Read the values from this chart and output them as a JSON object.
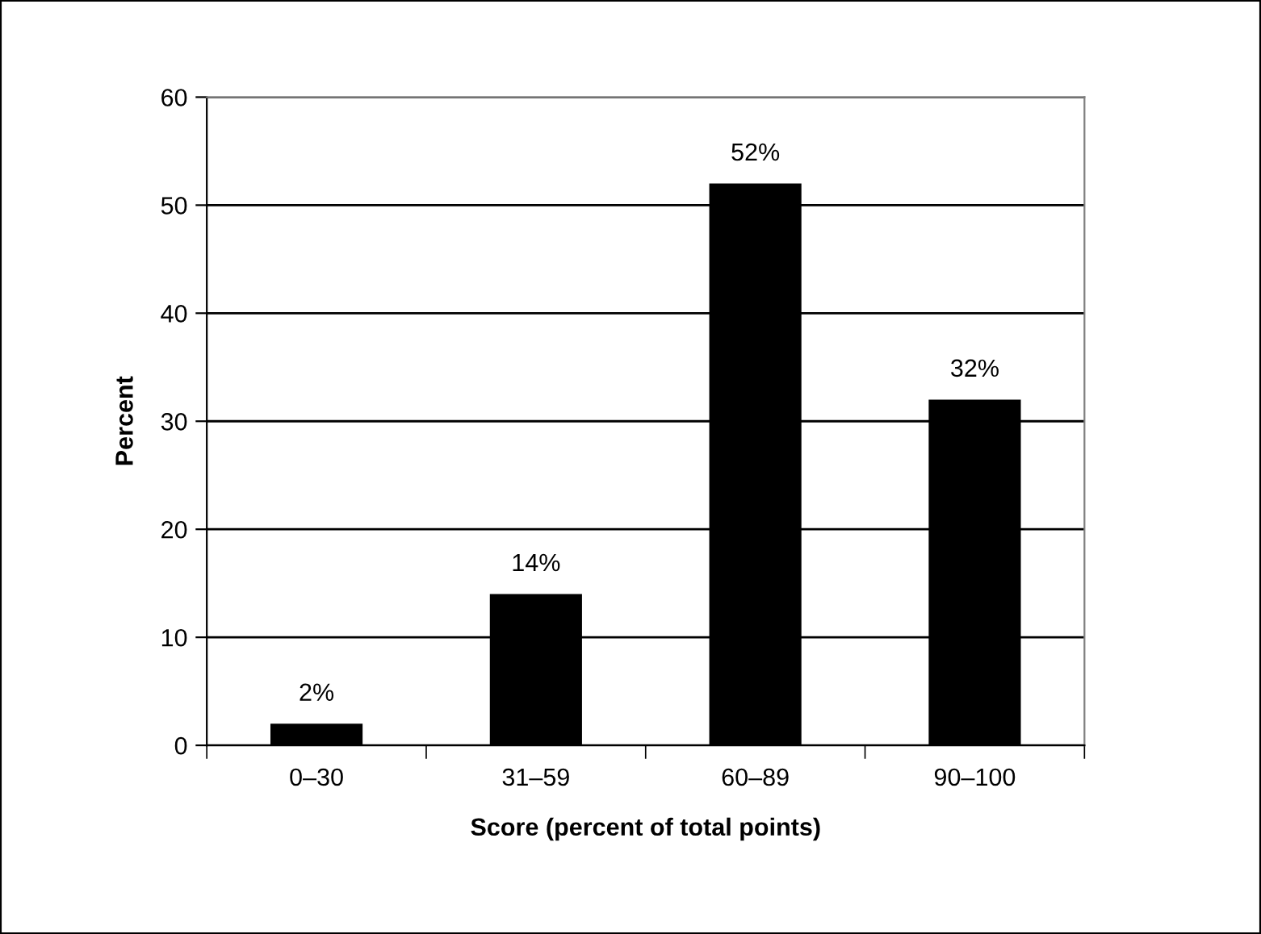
{
  "chart_data": {
    "type": "bar",
    "xlabel": "Score (percent of total points)",
    "ylabel": "Percent",
    "categories": [
      "0–30",
      "31–59",
      "60–89",
      "90–100"
    ],
    "values": [
      2,
      14,
      52,
      32
    ],
    "value_labels": [
      "2%",
      "14%",
      "52%",
      "32%"
    ],
    "color": "#000000",
    "ylim": [
      0,
      60
    ],
    "yticks": [
      0,
      10,
      20,
      30,
      40,
      50,
      60
    ],
    "grid": "y",
    "legend": false
  }
}
